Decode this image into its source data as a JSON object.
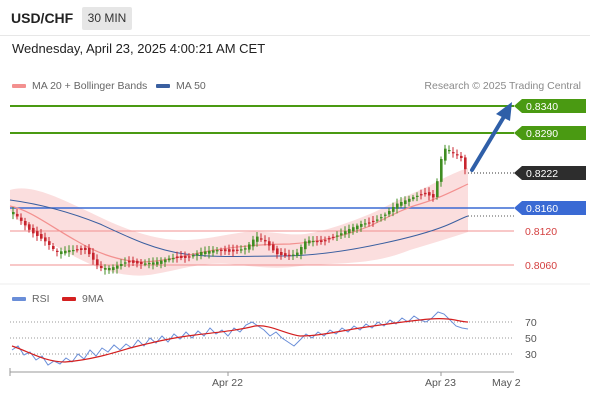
{
  "header": {
    "symbol": "USD/CHF",
    "timeframe": "30 MIN",
    "datetime": "Wednesday, April 23, 2025 4:00:21 AM CET"
  },
  "legend": {
    "ma20_label": "MA 20 + Bollinger Bands",
    "ma50_label": "MA 50",
    "copyright": "Research © 2025 Trading Central",
    "colors": {
      "ma20": "#f3908f",
      "ma50": "#3a5fa0",
      "band": "#fbdcdc"
    }
  },
  "levels": [
    {
      "label": "0.8340",
      "type": "resistance",
      "style": "badge-green"
    },
    {
      "label": "0.8290",
      "type": "resistance",
      "style": "badge-green"
    },
    {
      "label": "0.8222",
      "type": "current",
      "style": "badge-dark"
    },
    {
      "label": "0.8160",
      "type": "pivot",
      "style": "badge-blue"
    },
    {
      "label": "0.8120",
      "type": "support",
      "style": "text-red"
    },
    {
      "label": "0.8060",
      "type": "support",
      "style": "text-red"
    }
  ],
  "rsi": {
    "rsi_label": "RSI",
    "ma_label": "9MA",
    "levels": [
      "70",
      "50",
      "30"
    ],
    "colors": {
      "rsi": "#6a8ed8",
      "ma": "#d42020"
    }
  },
  "xaxis": {
    "labels": [
      "Apr 22",
      "Apr 23",
      "May 2"
    ]
  },
  "colors": {
    "green": "#4a9a12",
    "blue": "#3a6ad4",
    "red_level": "#f09090",
    "up_candle": "#3f8d22",
    "down_candle": "#c8252f",
    "arrow": "#2f5fa8",
    "dark_badge": "#2d2d2d"
  }
}
